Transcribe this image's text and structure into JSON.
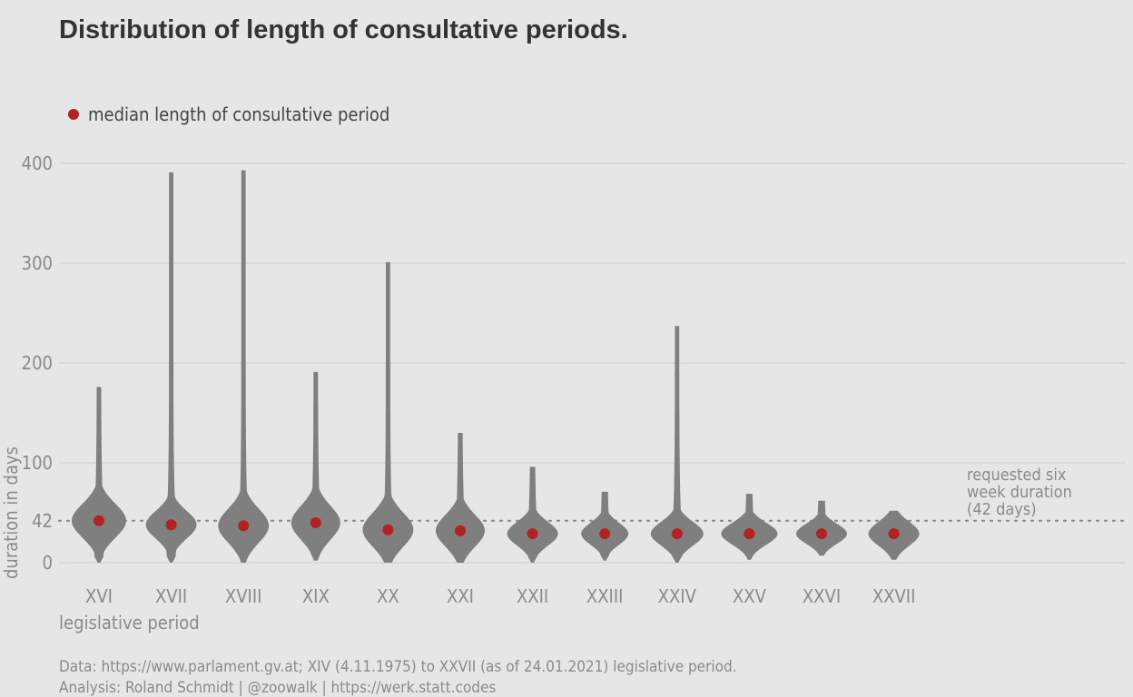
{
  "chart_data": {
    "type": "violin",
    "title": "Distribution of length of consultative periods.",
    "xlabel": "legislative period",
    "ylabel": "duration in days",
    "ylim": [
      0,
      400
    ],
    "y_ticks": [
      0,
      42,
      100,
      200,
      300,
      400
    ],
    "legend": {
      "label": "median length of consultative period",
      "position": "top-left",
      "color": "#b22222"
    },
    "reference_line": {
      "value": 42,
      "label_lines": [
        "requested six",
        "week duration",
        "(42 days)"
      ]
    },
    "categories": [
      "XVI",
      "XVII",
      "XVIII",
      "XIX",
      "XX",
      "XXI",
      "XXII",
      "XXIII",
      "XXIV",
      "XXV",
      "XXVI",
      "XXVII"
    ],
    "medians": [
      42,
      38,
      37,
      40,
      33,
      32,
      29,
      29,
      29,
      29,
      29,
      29
    ],
    "minimums": [
      0,
      0,
      0,
      2,
      0,
      0,
      0,
      2,
      0,
      3,
      7,
      3
    ],
    "maximums": [
      176,
      391,
      393,
      191,
      301,
      130,
      96,
      71,
      237,
      69,
      62,
      52
    ],
    "caption": [
      "Data: https://www.parlament.gv.at; XIV (4.11.1975) to XXVII (as of 24.01.2021) legislative period.",
      "Analysis: Roland Schmidt | @zoowalk | https://werk.statt.codes"
    ],
    "colors": {
      "violin": "#7f7f7f",
      "median": "#b22222",
      "reference": "#8a8a8a"
    }
  }
}
